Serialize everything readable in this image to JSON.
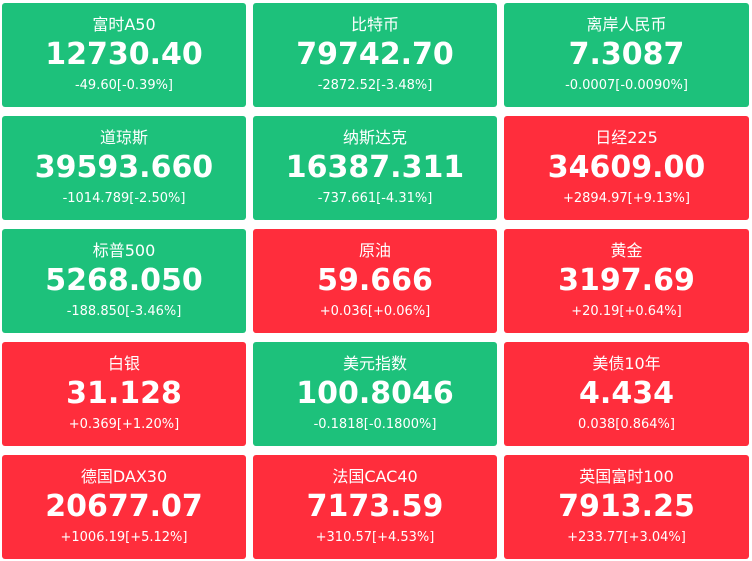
{
  "colors": {
    "up": "#ff2d3c",
    "down": "#1dc17b"
  },
  "tiles": [
    {
      "name": "富时A50",
      "price": "12730.40",
      "change": "-49.60[-0.39%]",
      "trend": "down"
    },
    {
      "name": "比特币",
      "price": "79742.70",
      "change": "-2872.52[-3.48%]",
      "trend": "down"
    },
    {
      "name": "离岸人民币",
      "price": "7.3087",
      "change": "-0.0007[-0.0090%]",
      "trend": "down"
    },
    {
      "name": "道琼斯",
      "price": "39593.660",
      "change": "-1014.789[-2.50%]",
      "trend": "down"
    },
    {
      "name": "纳斯达克",
      "price": "16387.311",
      "change": "-737.661[-4.31%]",
      "trend": "down"
    },
    {
      "name": "日经225",
      "price": "34609.00",
      "change": "+2894.97[+9.13%]",
      "trend": "up"
    },
    {
      "name": "标普500",
      "price": "5268.050",
      "change": "-188.850[-3.46%]",
      "trend": "down"
    },
    {
      "name": "原油",
      "price": "59.666",
      "change": "+0.036[+0.06%]",
      "trend": "up"
    },
    {
      "name": "黄金",
      "price": "3197.69",
      "change": "+20.19[+0.64%]",
      "trend": "up"
    },
    {
      "name": "白银",
      "price": "31.128",
      "change": "+0.369[+1.20%]",
      "trend": "up"
    },
    {
      "name": "美元指数",
      "price": "100.8046",
      "change": "-0.1818[-0.1800%]",
      "trend": "down"
    },
    {
      "name": "美债10年",
      "price": "4.434",
      "change": "0.038[0.864%]",
      "trend": "up"
    },
    {
      "name": "德国DAX30",
      "price": "20677.07",
      "change": "+1006.19[+5.12%]",
      "trend": "up"
    },
    {
      "name": "法国CAC40",
      "price": "7173.59",
      "change": "+310.57[+4.53%]",
      "trend": "up"
    },
    {
      "name": "英国富时100",
      "price": "7913.25",
      "change": "+233.77[+3.04%]",
      "trend": "up"
    }
  ]
}
